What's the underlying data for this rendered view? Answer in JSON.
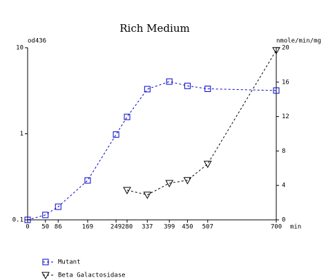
{
  "chart_data": {
    "type": "line",
    "title": "Rich Medium",
    "ylabel": "od436",
    "y2label": "nmole/min/mg",
    "xlabel": "min",
    "xlim": [
      0,
      700
    ],
    "xticks": [
      0,
      50,
      86,
      169,
      249,
      280,
      337,
      399,
      450,
      507,
      700
    ],
    "ylim": [
      0.1,
      10
    ],
    "yticks": [
      0.1,
      1,
      10
    ],
    "yscale": "log",
    "y2lim": [
      0,
      20
    ],
    "y2ticks": [
      0,
      4,
      8,
      12,
      16,
      20
    ],
    "series": [
      {
        "name": "Mutant",
        "color": "#0000cc",
        "marker": "square",
        "x": [
          0,
          50,
          86,
          169,
          249,
          280,
          337,
          399,
          450,
          507,
          700
        ],
        "values": [
          0.1,
          0.114,
          0.142,
          0.287,
          0.98,
          1.57,
          3.3,
          4.04,
          3.6,
          3.33,
          3.18
        ]
      },
      {
        "name": "Beta Galactosidase",
        "color": "#000000",
        "marker": "triangle-down",
        "axis": "y2",
        "x": [
          280,
          337,
          399,
          450,
          507,
          700
        ],
        "values": [
          3.45,
          2.9,
          4.26,
          4.6,
          6.5,
          19.7
        ]
      }
    ]
  }
}
